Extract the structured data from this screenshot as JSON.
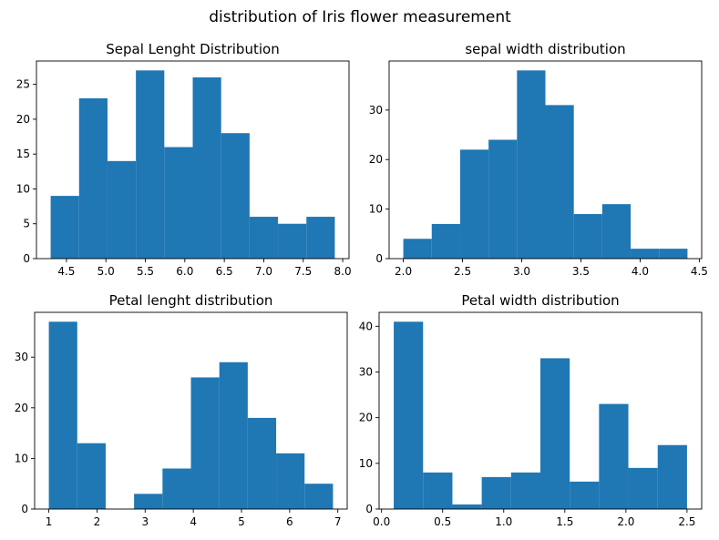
{
  "figure": {
    "title": "distribution of Iris flower measurement",
    "bar_color": "#1f77b4"
  },
  "chart_data": [
    {
      "type": "bar",
      "title": "Sepal Lenght Distribution",
      "xlabel": "",
      "ylabel": "",
      "bin_edges": [
        4.3,
        4.66,
        5.02,
        5.38,
        5.74,
        6.1,
        6.46,
        6.82,
        7.18,
        7.54,
        7.9
      ],
      "values": [
        9,
        23,
        14,
        27,
        16,
        26,
        18,
        6,
        5,
        6
      ],
      "xlim": [
        4.12,
        8.08
      ],
      "ylim": [
        0,
        28.35
      ],
      "xticks": [
        4.5,
        5.0,
        5.5,
        6.0,
        6.5,
        7.0,
        7.5,
        8.0
      ],
      "xtick_labels": [
        "4.5",
        "5.0",
        "5.5",
        "6.0",
        "6.5",
        "7.0",
        "7.5",
        "8.0"
      ],
      "yticks": [
        0,
        5,
        10,
        15,
        20,
        25
      ],
      "ytick_labels": [
        "0",
        "5",
        "10",
        "15",
        "20",
        "25"
      ]
    },
    {
      "type": "bar",
      "title": "sepal width distribution",
      "xlabel": "",
      "ylabel": "",
      "bin_edges": [
        2.0,
        2.24,
        2.48,
        2.72,
        2.96,
        3.2,
        3.44,
        3.68,
        3.92,
        4.16,
        4.4
      ],
      "values": [
        4,
        7,
        22,
        24,
        38,
        31,
        9,
        11,
        2,
        2
      ],
      "xlim": [
        1.88,
        4.52
      ],
      "ylim": [
        0,
        39.9
      ],
      "xticks": [
        2.0,
        2.5,
        3.0,
        3.5,
        4.0,
        4.5
      ],
      "xtick_labels": [
        "2.0",
        "2.5",
        "3.0",
        "3.5",
        "4.0",
        "4.5"
      ],
      "yticks": [
        0,
        10,
        20,
        30
      ],
      "ytick_labels": [
        "0",
        "10",
        "20",
        "30"
      ]
    },
    {
      "type": "bar",
      "title": "Petal lenght distribution",
      "xlabel": "",
      "ylabel": "",
      "bin_edges": [
        1.0,
        1.59,
        2.18,
        2.77,
        3.36,
        3.95,
        4.54,
        5.13,
        5.72,
        6.31,
        6.9
      ],
      "values": [
        37,
        13,
        0,
        3,
        8,
        26,
        29,
        18,
        11,
        5
      ],
      "xlim": [
        0.705,
        7.195
      ],
      "ylim": [
        0,
        38.85
      ],
      "xticks": [
        1,
        2,
        3,
        4,
        5,
        6,
        7
      ],
      "xtick_labels": [
        "1",
        "2",
        "3",
        "4",
        "5",
        "6",
        "7"
      ],
      "yticks": [
        0,
        10,
        20,
        30
      ],
      "ytick_labels": [
        "0",
        "10",
        "20",
        "30"
      ]
    },
    {
      "type": "bar",
      "title": "Petal width distribution",
      "xlabel": "",
      "ylabel": "",
      "bin_edges": [
        0.1,
        0.34,
        0.58,
        0.82,
        1.06,
        1.3,
        1.54,
        1.78,
        2.02,
        2.26,
        2.5
      ],
      "values": [
        41,
        8,
        1,
        7,
        8,
        33,
        6,
        23,
        9,
        14
      ],
      "xlim": [
        -0.02,
        2.62
      ],
      "ylim": [
        0,
        43.05
      ],
      "xticks": [
        0.0,
        0.5,
        1.0,
        1.5,
        2.0,
        2.5
      ],
      "xtick_labels": [
        "0.0",
        "0.5",
        "1.0",
        "1.5",
        "2.0",
        "2.5"
      ],
      "yticks": [
        0,
        10,
        20,
        30,
        40
      ],
      "ytick_labels": [
        "0",
        "10",
        "20",
        "30",
        "40"
      ]
    }
  ]
}
